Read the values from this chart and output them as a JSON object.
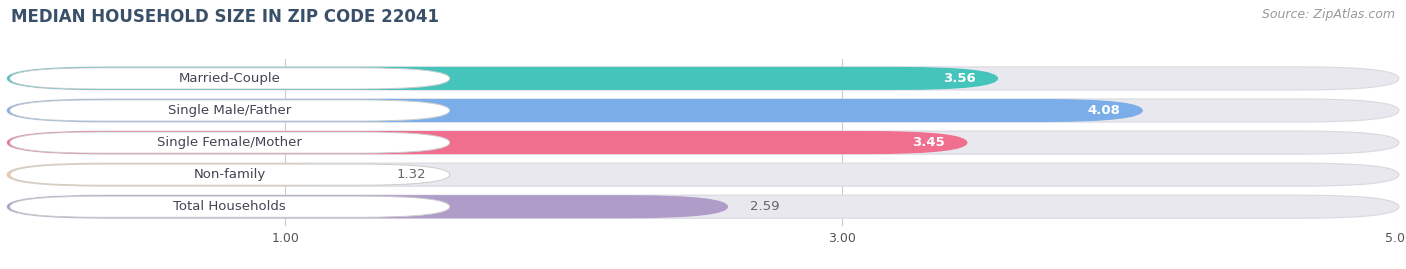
{
  "title": "MEDIAN HOUSEHOLD SIZE IN ZIP CODE 22041",
  "source": "Source: ZipAtlas.com",
  "categories": [
    "Married-Couple",
    "Single Male/Father",
    "Single Female/Mother",
    "Non-family",
    "Total Households"
  ],
  "values": [
    3.56,
    4.08,
    3.45,
    1.32,
    2.59
  ],
  "bar_colors": [
    "#45c4bc",
    "#7baee8",
    "#f06e8e",
    "#f5c896",
    "#b09cc8"
  ],
  "label_bg": "white",
  "xlim_min": 0,
  "xlim_max": 5.0,
  "xticks": [
    1.0,
    3.0,
    5.0
  ],
  "background_color": "#ffffff",
  "bar_bg_color": "#e8e8ee",
  "bar_bg_border": "#d8d8e0",
  "title_fontsize": 12,
  "source_fontsize": 9,
  "label_fontsize": 9.5,
  "value_fontsize": 9.5,
  "value_colors_white": [
    true,
    true,
    true,
    false,
    false
  ],
  "value_colors": [
    "#ffffff",
    "#ffffff",
    "#ffffff",
    "#666666",
    "#666666"
  ]
}
